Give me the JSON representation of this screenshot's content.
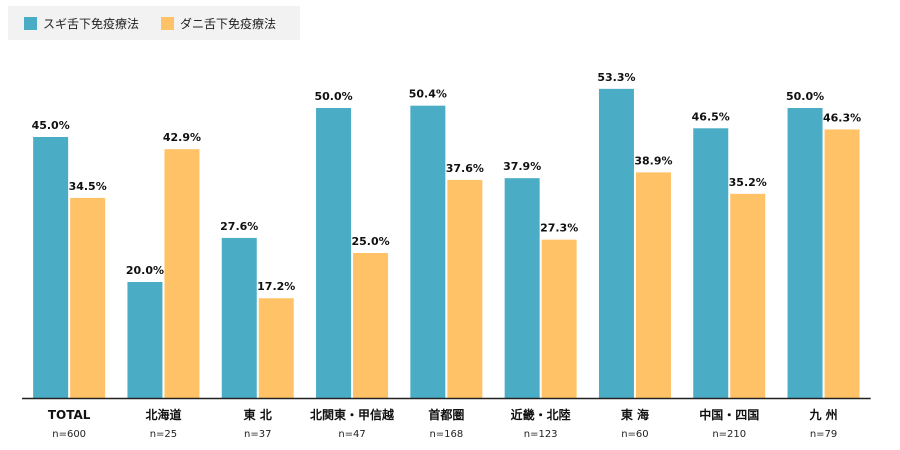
{
  "legend": {
    "items": [
      {
        "label": "スギ舌下免疫療法",
        "color": "#4bacc6"
      },
      {
        "label": "ダニ舌下免疫療法",
        "color": "#ffc266"
      }
    ]
  },
  "chart_data": {
    "type": "bar",
    "ylim": [
      0,
      60
    ],
    "grid": false,
    "legend_position": "top-left",
    "categories": [
      "TOTAL",
      "北海道",
      "東 北",
      "北関東・甲信越",
      "首都圏",
      "近畿・北陸",
      "東 海",
      "中国・四国",
      "九 州"
    ],
    "sample_sizes": [
      "n=600",
      "n=25",
      "n=37",
      "n=47",
      "n=168",
      "n=123",
      "n=60",
      "n=210",
      "n=79"
    ],
    "series": [
      {
        "name": "スギ舌下免疫療法",
        "color": "#4bacc6",
        "values": [
          45.0,
          20.0,
          27.6,
          50.0,
          50.4,
          37.9,
          53.3,
          46.5,
          50.0
        ],
        "labels": [
          "45.0%",
          "20.0%",
          "27.6%",
          "50.0%",
          "50.4%",
          "37.9%",
          "53.3%",
          "46.5%",
          "50.0%"
        ]
      },
      {
        "name": "ダニ舌下免疫療法",
        "color": "#ffc266",
        "values": [
          34.5,
          42.9,
          17.2,
          25.0,
          37.6,
          27.3,
          38.9,
          35.2,
          46.3
        ],
        "labels": [
          "34.5%",
          "42.9%",
          "17.2%",
          "25.0%",
          "37.6%",
          "27.3%",
          "38.9%",
          "35.2%",
          "46.3%"
        ]
      }
    ]
  }
}
